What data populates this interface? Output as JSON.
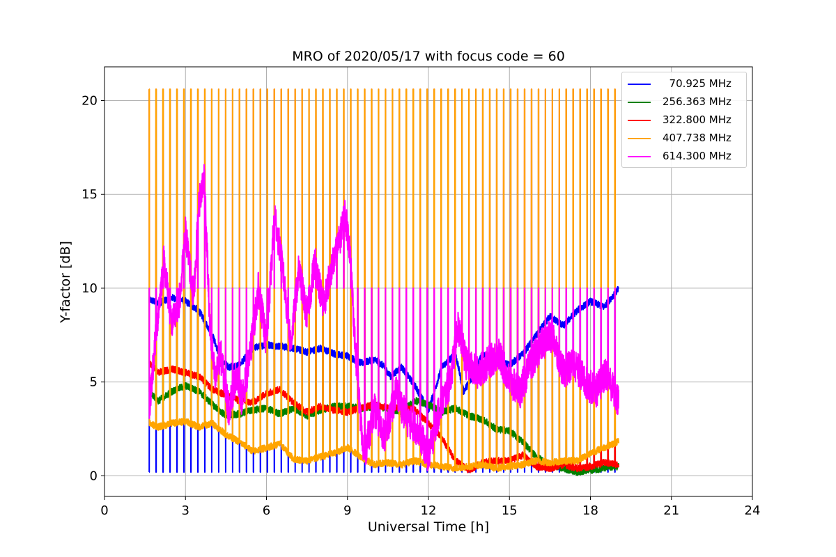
{
  "chart_data": {
    "type": "line",
    "title": "MRO of 2020/05/17 with focus code = 60",
    "xlabel": "Universal Time [h]",
    "ylabel": "Y-factor [dB]",
    "xlim": [
      0,
      24
    ],
    "ylim": [
      -1.1,
      21.8
    ],
    "xticks": [
      0,
      3,
      6,
      9,
      12,
      15,
      18,
      21,
      24
    ],
    "yticks": [
      0,
      5,
      10,
      15,
      20
    ],
    "grid": true,
    "legend_position": "top-right",
    "calibration_cycle": {
      "start_h": 1.65,
      "end_h": 19.05,
      "period_h": 0.2575,
      "spike_peak_db": 20.6,
      "spike_mid_db": 10.0,
      "dip_db": 0.2
    },
    "series": [
      {
        "name": "  70.925 MHz",
        "color": "#0000ff",
        "x": [
          1.65,
          2.0,
          2.5,
          3.0,
          3.5,
          4.0,
          4.3,
          4.6,
          5.0,
          5.5,
          6.0,
          6.5,
          7.0,
          7.5,
          8.0,
          8.5,
          9.0,
          9.5,
          10.0,
          10.3,
          10.6,
          11.0,
          11.5,
          12.0,
          12.5,
          13.0,
          13.3,
          13.6,
          14.0,
          14.5,
          15.0,
          15.5,
          16.0,
          16.5,
          17.0,
          17.5,
          18.0,
          18.5,
          19.0
        ],
        "y": [
          9.4,
          9.2,
          9.5,
          9.3,
          8.8,
          7.5,
          6.2,
          5.8,
          5.9,
          6.8,
          7.0,
          6.9,
          6.8,
          6.6,
          6.8,
          6.5,
          6.4,
          6.0,
          6.2,
          5.9,
          5.3,
          5.8,
          4.8,
          3.5,
          5.8,
          6.5,
          4.5,
          5.2,
          6.5,
          6.2,
          5.9,
          6.5,
          7.5,
          8.5,
          8.0,
          8.8,
          9.3,
          9.0,
          9.9
        ]
      },
      {
        "name": "256.363 MHz",
        "color": "#008000",
        "x": [
          1.65,
          2.0,
          2.5,
          3.0,
          3.5,
          4.0,
          4.5,
          5.0,
          5.5,
          6.0,
          6.5,
          7.0,
          7.5,
          8.0,
          8.5,
          9.0,
          9.5,
          10.0,
          10.5,
          11.0,
          11.5,
          12.0,
          12.5,
          13.0,
          13.5,
          14.0,
          14.5,
          15.0,
          15.5,
          16.0,
          16.5,
          17.0,
          17.5,
          18.0,
          18.5,
          19.0
        ],
        "y": [
          4.5,
          4.0,
          4.5,
          4.8,
          4.5,
          3.8,
          3.2,
          3.3,
          3.5,
          3.6,
          3.3,
          3.6,
          3.2,
          3.5,
          3.7,
          3.7,
          3.6,
          3.7,
          3.6,
          3.4,
          4.0,
          3.8,
          3.4,
          3.6,
          3.2,
          3.0,
          2.5,
          2.4,
          1.8,
          1.0,
          0.6,
          0.4,
          0.2,
          0.3,
          0.4,
          0.5
        ]
      },
      {
        "name": "322.800 MHz",
        "color": "#ff0000",
        "x": [
          1.65,
          2.0,
          2.5,
          3.0,
          3.5,
          4.0,
          4.5,
          5.0,
          5.5,
          6.0,
          6.5,
          7.0,
          7.5,
          8.0,
          8.5,
          9.0,
          9.5,
          10.0,
          10.5,
          11.0,
          11.5,
          12.0,
          12.5,
          13.0,
          13.5,
          14.0,
          14.5,
          15.0,
          15.5,
          16.0,
          16.5,
          17.0,
          17.5,
          18.0,
          18.5,
          19.0
        ],
        "y": [
          6.0,
          5.5,
          5.7,
          5.5,
          5.3,
          4.6,
          4.3,
          4.0,
          3.9,
          4.4,
          4.6,
          3.9,
          3.4,
          3.7,
          3.5,
          3.4,
          3.6,
          3.8,
          3.6,
          3.7,
          3.5,
          2.8,
          2.0,
          0.8,
          0.3,
          0.7,
          0.8,
          0.8,
          1.1,
          0.5,
          0.4,
          0.6,
          0.4,
          0.5,
          0.7,
          0.6
        ]
      },
      {
        "name": "407.738 MHz",
        "color": "#ffa500",
        "x": [
          1.65,
          2.0,
          2.5,
          3.0,
          3.5,
          4.0,
          4.5,
          5.0,
          5.5,
          6.0,
          6.5,
          7.0,
          7.5,
          8.0,
          8.5,
          9.0,
          9.5,
          10.0,
          10.5,
          11.0,
          11.5,
          12.0,
          12.5,
          13.0,
          13.5,
          14.0,
          14.5,
          15.0,
          15.5,
          16.0,
          16.5,
          17.0,
          17.5,
          18.0,
          18.5,
          19.0
        ],
        "y": [
          2.8,
          2.6,
          2.8,
          2.9,
          2.6,
          2.8,
          2.2,
          1.8,
          1.3,
          1.5,
          1.7,
          0.9,
          0.8,
          1.0,
          1.2,
          1.5,
          1.0,
          0.6,
          0.7,
          0.6,
          0.8,
          0.6,
          0.5,
          0.4,
          0.5,
          0.6,
          0.4,
          0.5,
          0.6,
          0.8,
          0.7,
          0.8,
          0.8,
          1.2,
          1.5,
          1.8
        ]
      },
      {
        "name": "614.300 MHz",
        "color": "#ff00ff",
        "x": [
          1.65,
          1.9,
          2.2,
          2.5,
          2.8,
          3.0,
          3.3,
          3.5,
          3.7,
          3.9,
          4.1,
          4.3,
          4.6,
          4.9,
          5.1,
          5.4,
          5.7,
          6.0,
          6.3,
          6.6,
          6.9,
          7.2,
          7.5,
          7.8,
          8.1,
          8.4,
          8.7,
          8.9,
          9.1,
          9.3,
          9.6,
          10.0,
          10.4,
          10.8,
          11.2,
          11.6,
          12.0,
          12.4,
          12.8,
          13.1,
          13.4,
          13.8,
          14.2,
          14.6,
          15.0,
          15.4,
          15.8,
          16.2,
          16.6,
          17.0,
          17.4,
          17.8,
          18.2,
          18.6,
          19.0
        ],
        "y": [
          3.5,
          7.5,
          11.5,
          8.0,
          9.5,
          13.0,
          9.5,
          14.5,
          16.0,
          8.0,
          5.0,
          6.5,
          3.5,
          5.5,
          4.0,
          6.5,
          10.0,
          7.0,
          14.0,
          11.0,
          7.0,
          11.0,
          8.5,
          11.5,
          9.0,
          11.0,
          12.5,
          14.0,
          12.0,
          6.5,
          1.0,
          3.5,
          2.0,
          4.5,
          3.0,
          2.5,
          1.0,
          3.5,
          5.0,
          8.0,
          6.0,
          5.5,
          6.0,
          6.5,
          5.0,
          4.5,
          6.0,
          7.0,
          7.5,
          5.5,
          6.0,
          5.0,
          4.5,
          5.5,
          4.0
        ]
      }
    ]
  }
}
